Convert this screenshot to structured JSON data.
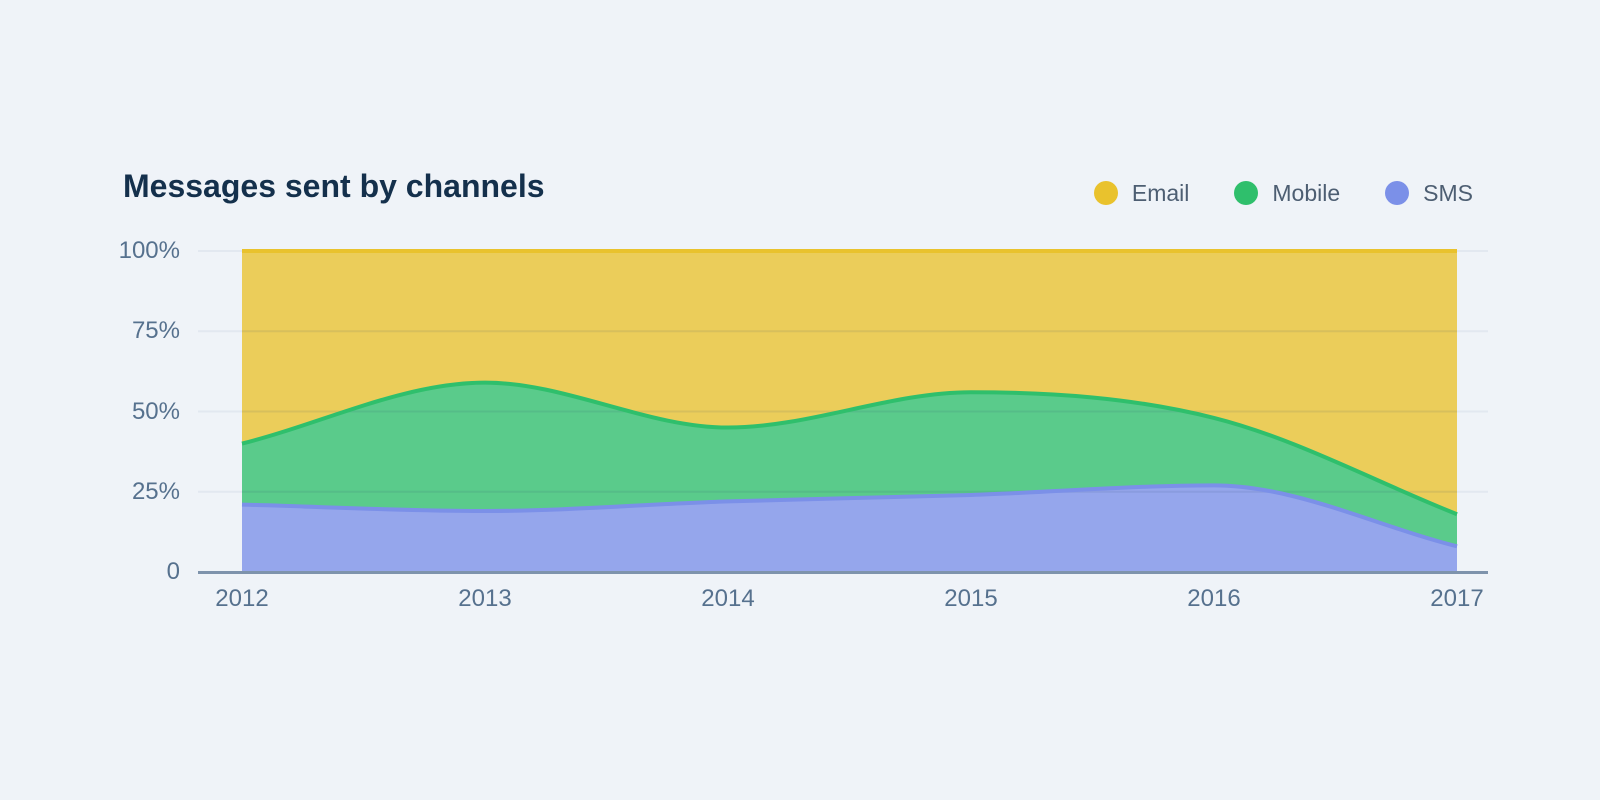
{
  "page": {
    "background": "#EFF3F8"
  },
  "header": {
    "title": "Messages sent by channels"
  },
  "legend": {
    "items": [
      {
        "label": "Email",
        "color": "#E9C22D"
      },
      {
        "label": "Mobile",
        "color": "#2FBF6C"
      },
      {
        "label": "SMS",
        "color": "#7B90E8"
      }
    ]
  },
  "chart_data": {
    "type": "area",
    "variant": "stacked-100-percent",
    "title": "Messages sent by channels",
    "x": [
      2012,
      2013,
      2014,
      2015,
      2016,
      2017
    ],
    "series": [
      {
        "name": "SMS",
        "values": [
          21,
          19,
          22,
          24,
          27,
          8
        ],
        "color": "#7B90E8"
      },
      {
        "name": "Mobile",
        "values": [
          19,
          40,
          23,
          32,
          21,
          10
        ],
        "color": "#2FBF6C"
      },
      {
        "name": "Email",
        "values": [
          60,
          41,
          55,
          44,
          52,
          82
        ],
        "color": "#E9C22D"
      }
    ],
    "y_ticks": [
      {
        "value": 0,
        "label": "0"
      },
      {
        "value": 25,
        "label": "25%"
      },
      {
        "value": 50,
        "label": "50%"
      },
      {
        "value": 75,
        "label": "75%"
      },
      {
        "value": 100,
        "label": "100%"
      }
    ],
    "ylim": [
      0,
      100
    ],
    "xlabel": "",
    "ylabel": "",
    "grid": true,
    "interpolation": "monotone",
    "legend_position": "top-right",
    "fill_opacity": 0.78,
    "style": {
      "grid_color": "#E2E8F0",
      "axis_line_color": "#7E93AC",
      "tick_label_color": "#56718E"
    }
  }
}
